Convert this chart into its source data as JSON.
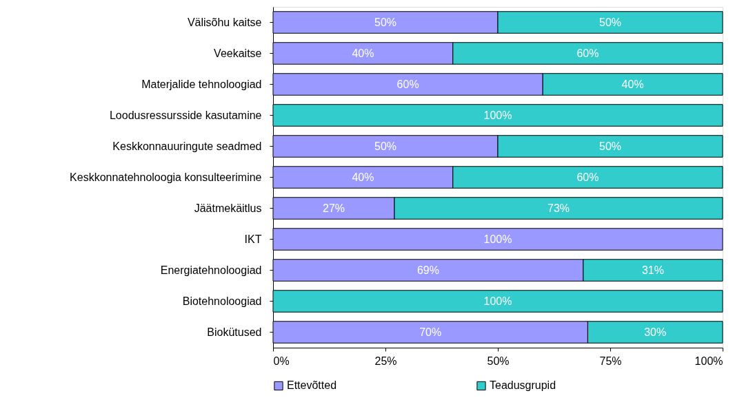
{
  "chart_data": {
    "type": "bar",
    "orientation": "horizontal",
    "stacked": true,
    "categories": [
      "Välisõhu kaitse",
      "Veekaitse",
      "Materjalide tehnoloogiad",
      "Loodusressursside kasutamine",
      "Keskkonnauuringute seadmed",
      "Keskkonnatehnoloogia konsulteerimine",
      "Jäätmekäitlus",
      "IKT",
      "Energiatehnoloogiad",
      "Biotehnoloogiad",
      "Biokütused"
    ],
    "series": [
      {
        "name": "Ettevõtted",
        "color": "#9999ff",
        "values": [
          50,
          40,
          60,
          0,
          50,
          40,
          27,
          100,
          69,
          0,
          70
        ],
        "value_labels": [
          "50%",
          "40%",
          "60%",
          null,
          "50%",
          "40%",
          "27%",
          "100%",
          "69%",
          null,
          "70%"
        ]
      },
      {
        "name": "Teadusgrupid",
        "color": "#33cccc",
        "values": [
          50,
          60,
          40,
          100,
          50,
          60,
          73,
          0,
          31,
          100,
          30
        ],
        "value_labels": [
          "50%",
          "60%",
          "40%",
          "100%",
          "50%",
          "60%",
          "73%",
          null,
          "31%",
          "100%",
          "30%"
        ]
      }
    ],
    "xlim": [
      0,
      100
    ],
    "xticks": [
      {
        "value": 0,
        "label": "0%"
      },
      {
        "value": 25,
        "label": "25%"
      },
      {
        "value": 50,
        "label": "50%"
      },
      {
        "value": 75,
        "label": "75%"
      },
      {
        "value": 100,
        "label": "100%"
      }
    ],
    "grid": false,
    "legend": "bottom"
  }
}
